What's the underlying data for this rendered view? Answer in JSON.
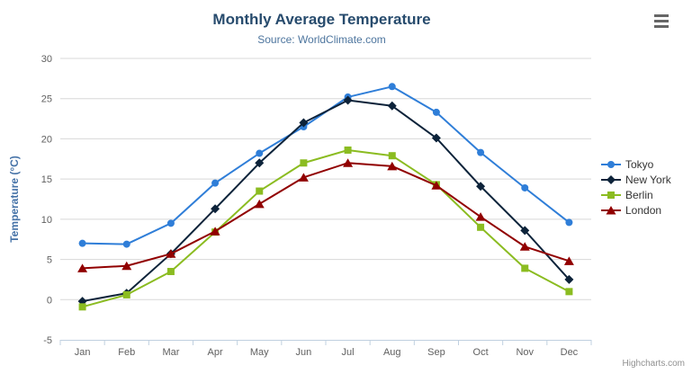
{
  "chart": {
    "title": "Monthly Average Temperature",
    "subtitle": "Source: WorldClimate.com",
    "credits": "Highcharts.com"
  },
  "chart_data": {
    "type": "line",
    "title": "Monthly Average Temperature",
    "subtitle": "Source: WorldClimate.com",
    "categories": [
      "Jan",
      "Feb",
      "Mar",
      "Apr",
      "May",
      "Jun",
      "Jul",
      "Aug",
      "Sep",
      "Oct",
      "Nov",
      "Dec"
    ],
    "series": [
      {
        "name": "Tokyo",
        "color": "#2f7ed8",
        "marker": "circle",
        "values": [
          7.0,
          6.9,
          9.5,
          14.5,
          18.2,
          21.5,
          25.2,
          26.5,
          23.3,
          18.3,
          13.9,
          9.6
        ]
      },
      {
        "name": "New York",
        "color": "#0d233a",
        "marker": "diamond",
        "values": [
          -0.2,
          0.8,
          5.7,
          11.3,
          17.0,
          22.0,
          24.8,
          24.1,
          20.1,
          14.1,
          8.6,
          2.5
        ]
      },
      {
        "name": "Berlin",
        "color": "#8bbc21",
        "marker": "square",
        "values": [
          -0.9,
          0.6,
          3.5,
          8.4,
          13.5,
          17.0,
          18.6,
          17.9,
          14.3,
          9.0,
          3.9,
          1.0
        ]
      },
      {
        "name": "London",
        "color": "#910000",
        "marker": "triangle",
        "values": [
          3.9,
          4.2,
          5.7,
          8.5,
          11.9,
          15.2,
          17.0,
          16.6,
          14.2,
          10.3,
          6.6,
          4.8
        ]
      }
    ],
    "xlabel": "",
    "ylabel": "Temperature (°C)",
    "ylim": [
      -5,
      30
    ],
    "ytick_step": 5,
    "grid": true,
    "legend_position": "right"
  },
  "colors": {
    "title": "#274b6d",
    "subtitle": "#4d759e",
    "axis_title": "#4572a7",
    "axis_labels": "#606060",
    "axis_line": "#c0d0e0",
    "gridline": "#d8d8d8",
    "legend_text": "#333333",
    "credits": "#909090",
    "background": "#ffffff"
  }
}
